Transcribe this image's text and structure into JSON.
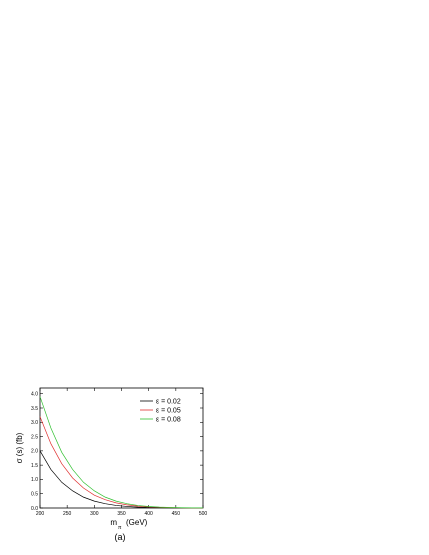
{
  "chart_data": {
    "type": "line",
    "panel_label": "(a)",
    "xlabel": {
      "main": "m",
      "subscript": "π",
      "unit": "(GeV)"
    },
    "ylabel": "σ (s) (fb)",
    "xlim": [
      200,
      500
    ],
    "ylim": [
      0,
      4.2
    ],
    "x_ticks": [
      200,
      250,
      300,
      350,
      400,
      450,
      500
    ],
    "y_ticks": [
      0.0,
      0.5,
      1.0,
      1.5,
      2.0,
      2.5,
      3.0,
      3.5,
      4.0
    ],
    "x_tick_labels": [
      "200",
      "250",
      "300",
      "350",
      "400",
      "450",
      "500"
    ],
    "y_tick_labels": [
      "0.0",
      "0.5",
      "1.0",
      "1.5",
      "2.0",
      "2.5",
      "3.0",
      "3.5",
      "4.0"
    ],
    "x": [
      200,
      220,
      240,
      260,
      280,
      300,
      320,
      340,
      360,
      380,
      400,
      420,
      440,
      460,
      480,
      500
    ],
    "series": [
      {
        "name": "ε = 0.02",
        "color": "#000000",
        "values": [
          2.0,
          1.35,
          0.9,
          0.6,
          0.38,
          0.24,
          0.15,
          0.09,
          0.055,
          0.03,
          0.018,
          0.01,
          0.006,
          0.003,
          0.002,
          0.001
        ]
      },
      {
        "name": "ε = 0.05",
        "color": "#e03030",
        "values": [
          3.2,
          2.25,
          1.55,
          1.05,
          0.7,
          0.45,
          0.29,
          0.18,
          0.11,
          0.065,
          0.038,
          0.022,
          0.012,
          0.007,
          0.004,
          0.002
        ]
      },
      {
        "name": "ε = 0.08",
        "color": "#30c030",
        "values": [
          3.9,
          2.8,
          1.95,
          1.35,
          0.9,
          0.6,
          0.38,
          0.24,
          0.15,
          0.09,
          0.052,
          0.03,
          0.017,
          0.009,
          0.005,
          0.003
        ]
      }
    ],
    "legend_position": "top-right",
    "grid": false
  }
}
